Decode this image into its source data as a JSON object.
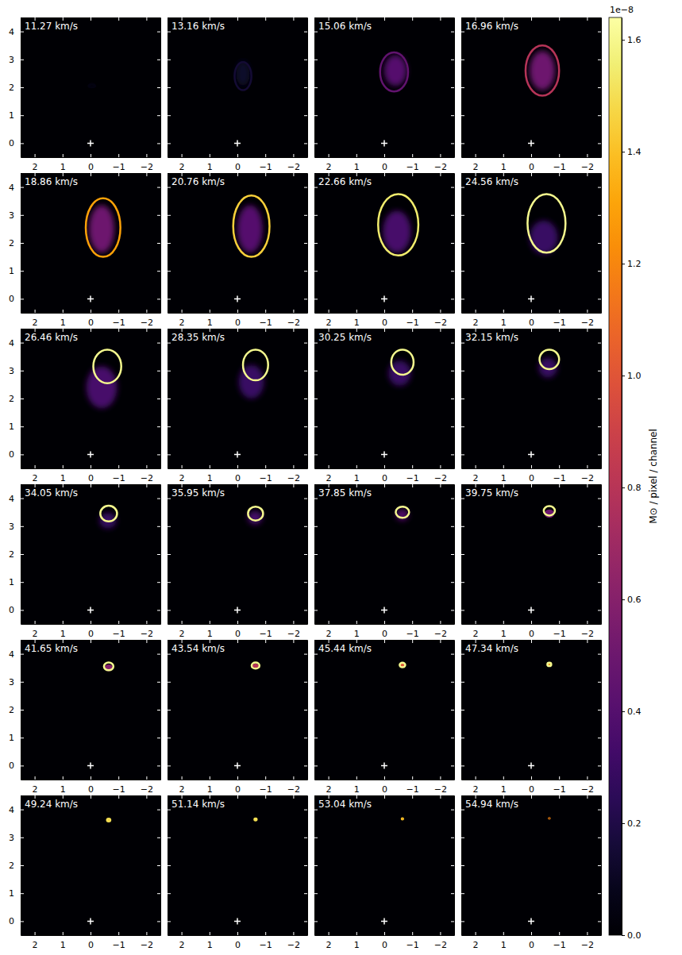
{
  "chart_data": {
    "type": "channel_map",
    "xlim": [
      2.5,
      -2.5
    ],
    "ylim": [
      -0.5,
      4.5
    ],
    "xticks": [
      2,
      1,
      0,
      {
        "value": -1,
        "label": "−1"
      },
      {
        "value": -2,
        "label": "−2"
      }
    ],
    "yticks": [
      0,
      1,
      2,
      3,
      4
    ],
    "star": {
      "x": 0,
      "y": 0,
      "marker": "plus"
    },
    "colorbar": {
      "label": "M⊙ / pixel / channel",
      "offset_label": "1e−8",
      "lim": [
        0,
        1.64e-08
      ],
      "ticks": [
        {
          "value": 0,
          "label": "0.0"
        },
        {
          "value": 2e-09,
          "label": "0.2"
        },
        {
          "value": 4e-09,
          "label": "0.4"
        },
        {
          "value": 6e-09,
          "label": "0.6"
        },
        {
          "value": 8e-09,
          "label": "0.8"
        },
        {
          "value": 1e-08,
          "label": "1.0"
        },
        {
          "value": 1.2e-08,
          "label": "1.2"
        },
        {
          "value": 1.4e-08,
          "label": "1.4"
        },
        {
          "value": 1.6e-08,
          "label": "1.6"
        }
      ]
    },
    "panels": [
      {
        "label": "11.27 km/s",
        "ring": {
          "cx": -0.05,
          "cy": 2.05,
          "rx": 0.12,
          "ry": 0.05,
          "value": 5e-10
        },
        "fill": {
          "cx": -0.05,
          "cy": 2.1,
          "rx": 0.12,
          "ry": 0.08,
          "value": 3e-10
        }
      },
      {
        "label": "13.16 km/s",
        "ring": {
          "cx": -0.2,
          "cy": 2.4,
          "rx": 0.3,
          "ry": 0.5,
          "value": 1.5e-09
        },
        "fill": {
          "cx": -0.2,
          "cy": 2.5,
          "rx": 0.25,
          "ry": 0.45,
          "value": 1.2e-09
        }
      },
      {
        "label": "15.06 km/s",
        "ring": {
          "cx": -0.35,
          "cy": 2.55,
          "rx": 0.5,
          "ry": 0.7,
          "value": 4.5e-09
        },
        "fill": {
          "cx": -0.4,
          "cy": 2.6,
          "rx": 0.4,
          "ry": 0.55,
          "value": 4e-09
        }
      },
      {
        "label": "16.96 km/s",
        "ring": {
          "cx": -0.4,
          "cy": 2.6,
          "rx": 0.6,
          "ry": 0.9,
          "value": 8e-09
        },
        "fill": {
          "cx": -0.4,
          "cy": 2.6,
          "rx": 0.45,
          "ry": 0.7,
          "value": 5e-09
        }
      },
      {
        "label": "18.86 km/s",
        "ring": {
          "cx": -0.45,
          "cy": 2.55,
          "rx": 0.62,
          "ry": 1.05,
          "value": 1.3e-08
        },
        "fill": {
          "cx": -0.4,
          "cy": 2.5,
          "rx": 0.45,
          "ry": 0.85,
          "value": 5e-09
        }
      },
      {
        "label": "20.76 km/s",
        "ring": {
          "cx": -0.5,
          "cy": 2.6,
          "rx": 0.65,
          "ry": 1.1,
          "value": 1.45e-08
        },
        "fill": {
          "cx": -0.45,
          "cy": 2.5,
          "rx": 0.45,
          "ry": 0.85,
          "value": 4e-09
        }
      },
      {
        "label": "22.66 km/s",
        "ring": {
          "cx": -0.5,
          "cy": 2.65,
          "rx": 0.72,
          "ry": 1.1,
          "value": 1.55e-08
        },
        "fill": {
          "cx": -0.45,
          "cy": 2.4,
          "rx": 0.5,
          "ry": 0.75,
          "value": 3.5e-09
        }
      },
      {
        "label": "24.56 km/s",
        "ring": {
          "cx": -0.55,
          "cy": 2.7,
          "rx": 0.68,
          "ry": 1.05,
          "value": 1.6e-08
        },
        "fill": {
          "cx": -0.45,
          "cy": 2.2,
          "rx": 0.5,
          "ry": 0.6,
          "value": 3e-09
        }
      },
      {
        "label": "26.46 km/s",
        "ring": {
          "cx": -0.6,
          "cy": 3.15,
          "rx": 0.5,
          "ry": 0.6,
          "value": 1.6e-08
        },
        "fill": {
          "cx": -0.4,
          "cy": 2.4,
          "rx": 0.55,
          "ry": 0.75,
          "value": 3.5e-09
        }
      },
      {
        "label": "28.35 km/s",
        "ring": {
          "cx": -0.65,
          "cy": 3.2,
          "rx": 0.45,
          "ry": 0.55,
          "value": 1.6e-08
        },
        "fill": {
          "cx": -0.5,
          "cy": 2.6,
          "rx": 0.45,
          "ry": 0.6,
          "value": 3e-09
        }
      },
      {
        "label": "30.25 km/s",
        "ring": {
          "cx": -0.65,
          "cy": 3.3,
          "rx": 0.4,
          "ry": 0.45,
          "value": 1.6e-08
        },
        "fill": {
          "cx": -0.55,
          "cy": 2.9,
          "rx": 0.4,
          "ry": 0.45,
          "value": 3e-09
        }
      },
      {
        "label": "32.15 km/s",
        "ring": {
          "cx": -0.65,
          "cy": 3.4,
          "rx": 0.35,
          "ry": 0.35,
          "value": 1.6e-08
        },
        "fill": {
          "cx": -0.6,
          "cy": 3.1,
          "rx": 0.33,
          "ry": 0.35,
          "value": 3e-09
        }
      },
      {
        "label": "34.05 km/s",
        "ring": {
          "cx": -0.65,
          "cy": 3.45,
          "rx": 0.3,
          "ry": 0.28,
          "value": 1.6e-08
        },
        "fill": {
          "cx": -0.62,
          "cy": 3.2,
          "rx": 0.3,
          "ry": 0.28,
          "value": 3e-09
        }
      },
      {
        "label": "35.95 km/s",
        "ring": {
          "cx": -0.65,
          "cy": 3.45,
          "rx": 0.27,
          "ry": 0.25,
          "value": 1.6e-08
        },
        "fill": {
          "cx": -0.63,
          "cy": 3.3,
          "rx": 0.26,
          "ry": 0.24,
          "value": 3.5e-09
        }
      },
      {
        "label": "37.85 km/s",
        "ring": {
          "cx": -0.65,
          "cy": 3.5,
          "rx": 0.24,
          "ry": 0.2,
          "value": 1.6e-08
        },
        "fill": {
          "cx": -0.64,
          "cy": 3.4,
          "rx": 0.22,
          "ry": 0.2,
          "value": 4e-09
        }
      },
      {
        "label": "39.75 km/s",
        "ring": {
          "cx": -0.65,
          "cy": 3.55,
          "rx": 0.2,
          "ry": 0.17,
          "value": 1.6e-08
        },
        "fill": {
          "cx": -0.65,
          "cy": 3.45,
          "rx": 0.18,
          "ry": 0.15,
          "value": 5e-09
        }
      },
      {
        "label": "41.65 km/s",
        "ring": {
          "cx": -0.65,
          "cy": 3.55,
          "rx": 0.17,
          "ry": 0.14,
          "value": 1.6e-08
        },
        "fill": {
          "cx": -0.65,
          "cy": 3.5,
          "rx": 0.15,
          "ry": 0.12,
          "value": 6e-09
        }
      },
      {
        "label": "43.54 km/s",
        "ring": {
          "cx": -0.65,
          "cy": 3.58,
          "rx": 0.14,
          "ry": 0.11,
          "value": 1.6e-08
        },
        "fill": {
          "cx": -0.65,
          "cy": 3.55,
          "rx": 0.12,
          "ry": 0.1,
          "value": 8e-09
        }
      },
      {
        "label": "45.44 km/s",
        "ring": {
          "cx": -0.65,
          "cy": 3.6,
          "rx": 0.1,
          "ry": 0.08,
          "value": 1.6e-08
        },
        "fill": {
          "cx": -0.65,
          "cy": 3.6,
          "rx": 0.09,
          "ry": 0.07,
          "value": 1e-08
        }
      },
      {
        "label": "47.34 km/s",
        "ring": {
          "cx": -0.65,
          "cy": 3.62,
          "rx": 0.07,
          "ry": 0.06,
          "value": 1.6e-08
        },
        "fill": {
          "cx": -0.65,
          "cy": 3.62,
          "rx": 0.06,
          "ry": 0.05,
          "value": 1.2e-08
        }
      },
      {
        "label": "49.24 km/s",
        "ring": {
          "cx": -0.65,
          "cy": 3.62,
          "rx": 0.06,
          "ry": 0.05,
          "value": 1.5e-08
        },
        "fill": {
          "cx": -0.65,
          "cy": 3.62,
          "rx": 0.055,
          "ry": 0.045,
          "value": 1.4e-08
        }
      },
      {
        "label": "51.14 km/s",
        "ring": {
          "cx": -0.65,
          "cy": 3.64,
          "rx": 0.04,
          "ry": 0.035,
          "value": 1.5e-08
        },
        "fill": {
          "cx": -0.65,
          "cy": 3.64,
          "rx": 0.04,
          "ry": 0.03,
          "value": 1.4e-08
        }
      },
      {
        "label": "53.04 km/s",
        "ring": {
          "cx": -0.65,
          "cy": 3.66,
          "rx": 0.025,
          "ry": 0.02,
          "value": 1.4e-08
        },
        "fill": {
          "cx": -0.65,
          "cy": 3.66,
          "rx": 0.02,
          "ry": 0.018,
          "value": 1.3e-08
        }
      },
      {
        "label": "54.94 km/s",
        "ring": {
          "cx": -0.65,
          "cy": 3.68,
          "rx": 0.015,
          "ry": 0.012,
          "value": 1.2e-08
        },
        "fill": {
          "cx": -0.65,
          "cy": 3.68,
          "rx": 0.012,
          "ry": 0.01,
          "value": 1.1e-08
        }
      }
    ]
  }
}
